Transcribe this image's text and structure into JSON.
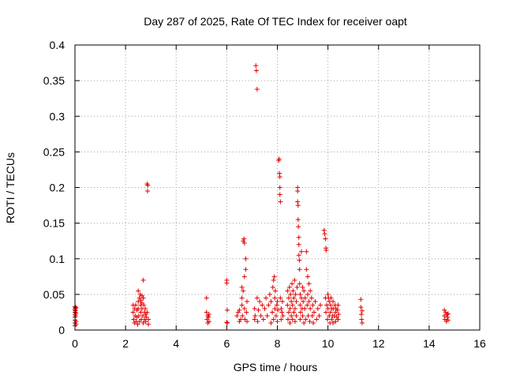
{
  "chart_data": {
    "type": "scatter",
    "title": "Day 287 of 2025, Rate Of TEC Index for receiver oapt",
    "xlabel": "GPS time / hours",
    "ylabel": "ROTI / TECUs",
    "xlim": [
      0,
      16
    ],
    "ylim": [
      0,
      0.4
    ],
    "xticks": [
      0,
      2,
      4,
      6,
      8,
      10,
      12,
      14,
      16
    ],
    "yticks": [
      0,
      0.05,
      0.1,
      0.15,
      0.2,
      0.25,
      0.3,
      0.35,
      0.4
    ],
    "xtick_labels": [
      "0",
      "2",
      "4",
      "6",
      "8",
      "10",
      "12",
      "14",
      "16"
    ],
    "ytick_labels": [
      "0",
      "0.05",
      "0.1",
      "0.15",
      "0.2",
      "0.25",
      "0.3",
      "0.35",
      "0.4"
    ],
    "grid": true,
    "marker": "+",
    "color": "#e00000",
    "series": [
      {
        "name": "ROTI",
        "points": [
          [
            0.0,
            0.033
          ],
          [
            0.0,
            0.03
          ],
          [
            0.0,
            0.028
          ],
          [
            0.0,
            0.025
          ],
          [
            0.0,
            0.022
          ],
          [
            0.0,
            0.018
          ],
          [
            0.0,
            0.014
          ],
          [
            0.0,
            0.01
          ],
          [
            0.0,
            0.006
          ],
          [
            0.02,
            0.032
          ],
          [
            0.02,
            0.027
          ],
          [
            0.02,
            0.02
          ],
          [
            0.04,
            0.031
          ],
          [
            0.04,
            0.024
          ],
          [
            0.04,
            0.012
          ],
          [
            0.04,
            0.008
          ],
          [
            2.3,
            0.035
          ],
          [
            2.3,
            0.025
          ],
          [
            2.32,
            0.015
          ],
          [
            2.35,
            0.03
          ],
          [
            2.35,
            0.01
          ],
          [
            2.38,
            0.02
          ],
          [
            2.4,
            0.035
          ],
          [
            2.42,
            0.012
          ],
          [
            2.45,
            0.028
          ],
          [
            2.45,
            0.018
          ],
          [
            2.48,
            0.008
          ],
          [
            2.5,
            0.055
          ],
          [
            2.5,
            0.04
          ],
          [
            2.5,
            0.03
          ],
          [
            2.52,
            0.02
          ],
          [
            2.55,
            0.012
          ],
          [
            2.55,
            0.045
          ],
          [
            2.58,
            0.05
          ],
          [
            2.6,
            0.042
          ],
          [
            2.6,
            0.035
          ],
          [
            2.6,
            0.025
          ],
          [
            2.62,
            0.015
          ],
          [
            2.65,
            0.048
          ],
          [
            2.65,
            0.038
          ],
          [
            2.65,
            0.03
          ],
          [
            2.68,
            0.02
          ],
          [
            2.7,
            0.07
          ],
          [
            2.7,
            0.045
          ],
          [
            2.7,
            0.01
          ],
          [
            2.72,
            0.035
          ],
          [
            2.75,
            0.025
          ],
          [
            2.75,
            0.015
          ],
          [
            2.78,
            0.03
          ],
          [
            2.8,
            0.022
          ],
          [
            2.8,
            0.012
          ],
          [
            2.82,
            0.018
          ],
          [
            2.85,
            0.025
          ],
          [
            2.85,
            0.205
          ],
          [
            2.87,
            0.195
          ],
          [
            2.88,
            0.203
          ],
          [
            2.9,
            0.015
          ],
          [
            2.9,
            0.008
          ],
          [
            5.2,
            0.045
          ],
          [
            5.2,
            0.025
          ],
          [
            5.22,
            0.015
          ],
          [
            5.25,
            0.02
          ],
          [
            5.25,
            0.01
          ],
          [
            5.28,
            0.018
          ],
          [
            5.3,
            0.022
          ],
          [
            5.3,
            0.012
          ],
          [
            6.0,
            0.07
          ],
          [
            6.0,
            0.066
          ],
          [
            6.02,
            0.028
          ],
          [
            6.0,
            0.011
          ],
          [
            6.02,
            0.01
          ],
          [
            6.4,
            0.02
          ],
          [
            6.45,
            0.025
          ],
          [
            6.5,
            0.012
          ],
          [
            6.5,
            0.028
          ],
          [
            6.55,
            0.015
          ],
          [
            6.6,
            0.06
          ],
          [
            6.6,
            0.045
          ],
          [
            6.6,
            0.035
          ],
          [
            6.62,
            0.02
          ],
          [
            6.65,
            0.055
          ],
          [
            6.65,
            0.125
          ],
          [
            6.68,
            0.128
          ],
          [
            6.7,
            0.122
          ],
          [
            6.7,
            0.075
          ],
          [
            6.7,
            0.03
          ],
          [
            6.72,
            0.015
          ],
          [
            6.75,
            0.1
          ],
          [
            6.75,
            0.085
          ],
          [
            6.78,
            0.025
          ],
          [
            6.8,
            0.012
          ],
          [
            6.8,
            0.04
          ],
          [
            7.1,
            0.015
          ],
          [
            7.1,
            0.03
          ],
          [
            7.12,
            0.02
          ],
          [
            7.15,
            0.371
          ],
          [
            7.17,
            0.364
          ],
          [
            7.2,
            0.338
          ],
          [
            7.2,
            0.045
          ],
          [
            7.22,
            0.012
          ],
          [
            7.25,
            0.028
          ],
          [
            7.3,
            0.04
          ],
          [
            7.35,
            0.02
          ],
          [
            7.4,
            0.035
          ],
          [
            7.45,
            0.015
          ],
          [
            7.5,
            0.03
          ],
          [
            7.55,
            0.045
          ],
          [
            7.6,
            0.02
          ],
          [
            7.65,
            0.035
          ],
          [
            7.7,
            0.05
          ],
          [
            7.75,
            0.01
          ],
          [
            7.75,
            0.04
          ],
          [
            7.8,
            0.025
          ],
          [
            7.82,
            0.06
          ],
          [
            7.85,
            0.07
          ],
          [
            7.85,
            0.015
          ],
          [
            7.88,
            0.075
          ],
          [
            7.9,
            0.045
          ],
          [
            7.9,
            0.03
          ],
          [
            7.92,
            0.055
          ],
          [
            7.95,
            0.02
          ],
          [
            7.98,
            0.035
          ],
          [
            8.0,
            0.012
          ],
          [
            8.0,
            0.04
          ],
          [
            8.02,
            0.028
          ],
          [
            8.05,
            0.238
          ],
          [
            8.07,
            0.24
          ],
          [
            8.08,
            0.22
          ],
          [
            8.1,
            0.215
          ],
          [
            8.1,
            0.2
          ],
          [
            8.1,
            0.19
          ],
          [
            8.12,
            0.18
          ],
          [
            8.12,
            0.045
          ],
          [
            8.15,
            0.03
          ],
          [
            8.15,
            0.015
          ],
          [
            8.18,
            0.025
          ],
          [
            8.2,
            0.04
          ],
          [
            8.22,
            0.02
          ],
          [
            8.4,
            0.055
          ],
          [
            8.4,
            0.035
          ],
          [
            8.42,
            0.015
          ],
          [
            8.45,
            0.045
          ],
          [
            8.45,
            0.025
          ],
          [
            8.48,
            0.06
          ],
          [
            8.5,
            0.01
          ],
          [
            8.5,
            0.03
          ],
          [
            8.52,
            0.05
          ],
          [
            8.55,
            0.02
          ],
          [
            8.55,
            0.04
          ],
          [
            8.58,
            0.065
          ],
          [
            8.6,
            0.015
          ],
          [
            8.6,
            0.035
          ],
          [
            8.62,
            0.055
          ],
          [
            8.65,
            0.025
          ],
          [
            8.65,
            0.045
          ],
          [
            8.68,
            0.07
          ],
          [
            8.7,
            0.012
          ],
          [
            8.7,
            0.03
          ],
          [
            8.72,
            0.05
          ],
          [
            8.75,
            0.02
          ],
          [
            8.75,
            0.04
          ],
          [
            8.78,
            0.06
          ],
          [
            8.8,
            0.2
          ],
          [
            8.8,
            0.195
          ],
          [
            8.8,
            0.18
          ],
          [
            8.82,
            0.175
          ],
          [
            8.82,
            0.155
          ],
          [
            8.83,
            0.145
          ],
          [
            8.85,
            0.13
          ],
          [
            8.85,
            0.12
          ],
          [
            8.85,
            0.105
          ],
          [
            8.87,
            0.098
          ],
          [
            8.88,
            0.085
          ],
          [
            8.88,
            0.065
          ],
          [
            8.9,
            0.015
          ],
          [
            8.9,
            0.035
          ],
          [
            8.9,
            0.05
          ],
          [
            8.92,
            0.025
          ],
          [
            8.95,
            0.11
          ],
          [
            8.95,
            0.045
          ],
          [
            8.98,
            0.03
          ],
          [
            9.0,
            0.02
          ],
          [
            9.0,
            0.06
          ],
          [
            9.02,
            0.04
          ],
          [
            9.05,
            0.01
          ],
          [
            9.05,
            0.055
          ],
          [
            9.08,
            0.03
          ],
          [
            9.1,
            0.045
          ],
          [
            9.12,
            0.015
          ],
          [
            9.15,
            0.11
          ],
          [
            9.15,
            0.085
          ],
          [
            9.18,
            0.035
          ],
          [
            9.2,
            0.075
          ],
          [
            9.2,
            0.05
          ],
          [
            9.22,
            0.02
          ],
          [
            9.25,
            0.065
          ],
          [
            9.25,
            0.04
          ],
          [
            9.28,
            0.012
          ],
          [
            9.3,
            0.055
          ],
          [
            9.3,
            0.03
          ],
          [
            9.35,
            0.045
          ],
          [
            9.38,
            0.02
          ],
          [
            9.4,
            0.035
          ],
          [
            9.42,
            0.01
          ],
          [
            9.45,
            0.025
          ],
          [
            9.5,
            0.04
          ],
          [
            9.55,
            0.015
          ],
          [
            9.6,
            0.03
          ],
          [
            9.65,
            0.02
          ],
          [
            9.7,
            0.035
          ],
          [
            9.85,
            0.14
          ],
          [
            9.87,
            0.135
          ],
          [
            9.9,
            0.128
          ],
          [
            9.92,
            0.115
          ],
          [
            9.93,
            0.112
          ],
          [
            9.9,
            0.045
          ],
          [
            9.92,
            0.025
          ],
          [
            9.95,
            0.035
          ],
          [
            9.98,
            0.015
          ],
          [
            10.0,
            0.05
          ],
          [
            10.0,
            0.03
          ],
          [
            10.02,
            0.045
          ],
          [
            10.05,
            0.02
          ],
          [
            10.05,
            0.04
          ],
          [
            10.08,
            0.01
          ],
          [
            10.1,
            0.035
          ],
          [
            10.1,
            0.025
          ],
          [
            10.12,
            0.045
          ],
          [
            10.15,
            0.015
          ],
          [
            10.15,
            0.03
          ],
          [
            10.18,
            0.02
          ],
          [
            10.2,
            0.04
          ],
          [
            10.2,
            0.01
          ],
          [
            10.22,
            0.03
          ],
          [
            10.25,
            0.02
          ],
          [
            10.28,
            0.035
          ],
          [
            10.3,
            0.012
          ],
          [
            10.3,
            0.025
          ],
          [
            10.32,
            0.03
          ],
          [
            10.35,
            0.018
          ],
          [
            10.38,
            0.028
          ],
          [
            10.4,
            0.015
          ],
          [
            10.4,
            0.035
          ],
          [
            10.42,
            0.022
          ],
          [
            11.3,
            0.043
          ],
          [
            11.3,
            0.032
          ],
          [
            11.32,
            0.022
          ],
          [
            11.33,
            0.015
          ],
          [
            11.35,
            0.01
          ],
          [
            11.35,
            0.027
          ],
          [
            14.6,
            0.028
          ],
          [
            14.6,
            0.02
          ],
          [
            14.62,
            0.015
          ],
          [
            14.65,
            0.025
          ],
          [
            14.68,
            0.012
          ],
          [
            14.7,
            0.022
          ],
          [
            14.72,
            0.018
          ],
          [
            14.75,
            0.014
          ],
          [
            14.75,
            0.023
          ]
        ]
      }
    ]
  }
}
